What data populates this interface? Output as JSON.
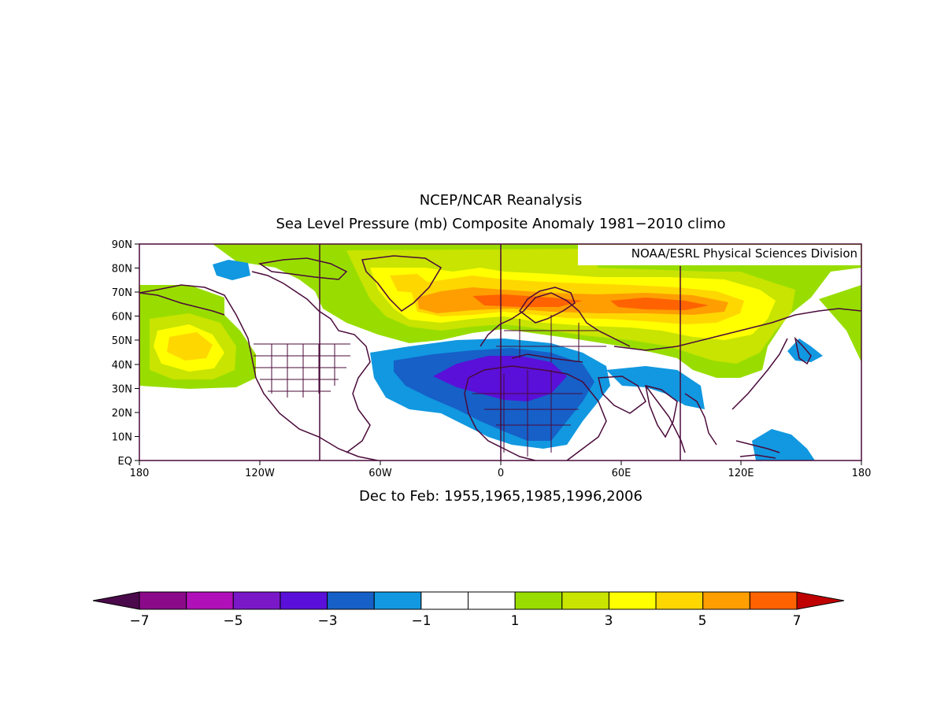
{
  "title": "NCEP/NCAR Reanalysis",
  "subtitle": "Sea Level Pressure (mb) Composite Anomaly 1981−2010 climo",
  "credit": "NOAA/ESRL Physical Sciences Division",
  "period": "Dec to Feb: 1955,1965,1985,1996,2006",
  "lat_labels": [
    "90N",
    "80N",
    "70N",
    "60N",
    "50N",
    "40N",
    "30N",
    "20N",
    "10N",
    "EQ"
  ],
  "lon_labels": [
    "180",
    "120W",
    "60W",
    "0",
    "60E",
    "120E",
    "180"
  ],
  "colorbar": {
    "labels": [
      "−7",
      "−5",
      "−3",
      "−1",
      "1",
      "3",
      "5",
      "7"
    ],
    "colors": [
      "#4b0a4b",
      "#8a0a8a",
      "#b010b8",
      "#7a18c8",
      "#5a10d8",
      "#1660c8",
      "#1198e0",
      "#ffffff",
      "#ffffff",
      "#99dd00",
      "#c8e400",
      "#ffff00",
      "#ffd700",
      "#ff9e00",
      "#ff6200",
      "#c00000"
    ]
  },
  "anomaly_colors": {
    "neg3": "#5a10d8",
    "neg2": "#1660c8",
    "neg1": "#1198e0",
    "pos1": "#99dd00",
    "pos2": "#c8e400",
    "pos3": "#ffff00",
    "pos4": "#ffd700",
    "pos5": "#ff9e00",
    "pos6": "#ff6200"
  },
  "coast_color": "#4a0a3a"
}
